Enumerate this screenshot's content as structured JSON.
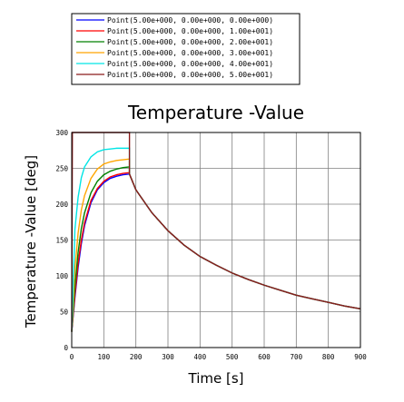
{
  "chart_data": {
    "type": "line",
    "title": "Temperature -Value",
    "xlabel": "Time [s]",
    "ylabel": "Temperature -Value [deg]",
    "xlim": [
      0,
      900
    ],
    "ylim": [
      0,
      300
    ],
    "xticks": [
      "0",
      "100",
      "200",
      "300",
      "400",
      "500",
      "600",
      "700",
      "800",
      "900"
    ],
    "yticks": [
      "0",
      "50",
      "100",
      "150",
      "200",
      "250",
      "300"
    ],
    "grid": true,
    "legend_position": "top",
    "heating_end_time": 180,
    "cooling_curve": {
      "x": [
        180,
        200,
        250,
        300,
        350,
        400,
        450,
        500,
        550,
        600,
        650,
        700,
        750,
        800,
        850,
        900
      ],
      "y": [
        242,
        220,
        188,
        163,
        143,
        127,
        115,
        104,
        95,
        87,
        80,
        73,
        68,
        63,
        58,
        54
      ]
    },
    "series": [
      {
        "name": "Point(5.00e+000, 0.00e+000, 0.00e+000)",
        "color": "#0000ff",
        "x": [
          0,
          10,
          20,
          30,
          40,
          60,
          80,
          100,
          120,
          140,
          160,
          180
        ],
        "y": [
          22,
          70,
          112,
          145,
          170,
          202,
          220,
          230,
          236,
          239,
          241,
          242
        ]
      },
      {
        "name": "Point(5.00e+000, 0.00e+000, 1.00e+001)",
        "color": "#ff0000",
        "x": [
          0,
          10,
          20,
          30,
          40,
          60,
          80,
          100,
          120,
          140,
          160,
          180
        ],
        "y": [
          22,
          74,
          118,
          150,
          174,
          205,
          222,
          232,
          238,
          241,
          243,
          244
        ]
      },
      {
        "name": "Point(5.00e+000, 0.00e+000, 2.00e+001)",
        "color": "#008000",
        "x": [
          0,
          10,
          20,
          30,
          40,
          60,
          80,
          100,
          120,
          140,
          160,
          180
        ],
        "y": [
          22,
          85,
          133,
          166,
          188,
          216,
          232,
          241,
          246,
          249,
          251,
          252
        ]
      },
      {
        "name": "Point(5.00e+000, 0.00e+000, 3.00e+001)",
        "color": "#ffa500",
        "x": [
          0,
          10,
          20,
          30,
          40,
          60,
          80,
          100,
          120,
          140,
          160,
          180
        ],
        "y": [
          22,
          110,
          160,
          192,
          212,
          236,
          249,
          256,
          259,
          261,
          262,
          263
        ]
      },
      {
        "name": "Point(5.00e+000, 0.00e+000, 4.00e+001)",
        "color": "#00e5e5",
        "x": [
          0,
          10,
          20,
          30,
          40,
          60,
          80,
          100,
          120,
          140,
          160,
          180
        ],
        "y": [
          22,
          165,
          210,
          237,
          252,
          266,
          273,
          276,
          277,
          278,
          278,
          278
        ]
      },
      {
        "name": "Point(5.00e+000, 0.00e+000, 5.00e+001)",
        "color": "#8b1a1a",
        "x": [
          0,
          2,
          5,
          180
        ],
        "y": [
          22,
          300,
          300,
          300
        ]
      }
    ]
  }
}
